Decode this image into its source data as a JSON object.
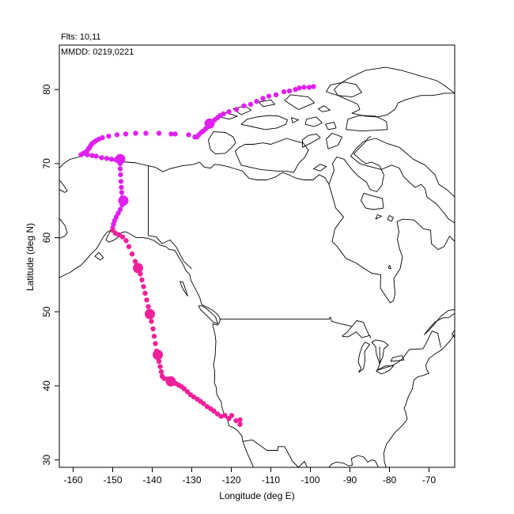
{
  "header": {
    "flights": "Flts: 10,11",
    "mmdd": "MMDD: 0219,0221"
  },
  "chart_data": {
    "type": "scatter",
    "map": "North America coastline and political boundaries (trajectory map)",
    "xlabel": "Longitude (deg E)",
    "ylabel": "Latitude (deg N)",
    "xlim": [
      -163.5,
      -63.5
    ],
    "ylim": [
      29,
      86
    ],
    "xticks": [
      -160,
      -150,
      -140,
      -130,
      -120,
      -110,
      -100,
      -90,
      -80,
      -70
    ],
    "yticks": [
      30,
      40,
      50,
      60,
      70,
      80
    ],
    "colors": {
      "series_magenta": "#e020f0",
      "series_pink": "#f0209a",
      "coast": "#000000"
    },
    "series": [
      {
        "color": "#e020f0",
        "points": [
          [
            -99.2,
            80.4
          ],
          [
            -100.3,
            80.3
          ],
          [
            -101.6,
            80.3
          ],
          [
            -102.8,
            80.2
          ],
          [
            -103.8,
            80.0
          ],
          [
            -105.3,
            79.8
          ],
          [
            -106.7,
            79.7
          ],
          [
            -108.7,
            79.3
          ],
          [
            -110.5,
            79.1
          ],
          [
            -112.0,
            78.8
          ],
          [
            -113.6,
            78.4
          ],
          [
            -115.1,
            78.0
          ],
          [
            -116.8,
            77.8
          ],
          [
            -118.7,
            77.3
          ],
          [
            -120.6,
            77.0
          ],
          [
            -122.0,
            76.7
          ],
          [
            -122.8,
            76.5
          ],
          [
            -123.5,
            76.2
          ],
          [
            -124.2,
            75.9
          ],
          [
            -124.8,
            75.6
          ],
          [
            -125.3,
            75.3
          ],
          [
            -125.9,
            75.0
          ],
          [
            -126.5,
            74.7
          ],
          [
            -127.1,
            74.4
          ],
          [
            -127.6,
            74.2
          ],
          [
            -128.2,
            73.9
          ],
          [
            -128.7,
            73.6
          ],
          [
            -129.2,
            73.6
          ],
          [
            -130.8,
            73.9
          ],
          [
            -134.2,
            74.0
          ],
          [
            -135.2,
            74.0
          ],
          [
            -138.3,
            74.1
          ],
          [
            -141.6,
            74.1
          ],
          [
            -144.2,
            74.1
          ],
          [
            -146.7,
            74.0
          ],
          [
            -148.9,
            73.9
          ],
          [
            -151.0,
            73.7
          ],
          [
            -152.6,
            73.5
          ],
          [
            -153.5,
            73.3
          ],
          [
            -154.2,
            73.1
          ],
          [
            -154.7,
            72.9
          ],
          [
            -155.2,
            72.7
          ],
          [
            -155.5,
            72.5
          ],
          [
            -155.8,
            72.2
          ],
          [
            -156.1,
            72.0
          ],
          [
            -156.5,
            71.7
          ],
          [
            -156.9,
            71.5
          ],
          [
            -157.4,
            71.4
          ],
          [
            -158.0,
            71.2
          ],
          [
            -156.4,
            71.2
          ],
          [
            -155.2,
            71.1
          ],
          [
            -154.2,
            71.0
          ],
          [
            -152.8,
            70.8
          ],
          [
            -151.5,
            70.7
          ],
          [
            -150.3,
            70.6
          ],
          [
            -149.2,
            70.5
          ],
          [
            -148.2,
            70.4
          ],
          [
            -148.1,
            70.0
          ],
          [
            -148.1,
            69.3
          ],
          [
            -148.0,
            68.5
          ],
          [
            -147.9,
            67.6
          ],
          [
            -147.8,
            66.8
          ],
          [
            -147.7,
            66.1
          ],
          [
            -147.6,
            65.4
          ],
          [
            -147.4,
            64.9
          ],
          [
            -147.6,
            64.4
          ],
          [
            -148.1,
            63.8
          ],
          [
            -148.6,
            63.3
          ],
          [
            -149.1,
            62.8
          ],
          [
            -149.5,
            62.3
          ],
          [
            -149.8,
            61.8
          ],
          [
            -150.0,
            61.3
          ]
        ],
        "large": [
          [
            -125.5,
            75.4
          ],
          [
            -148.1,
            70.6
          ],
          [
            -147.3,
            65.0
          ]
        ]
      },
      {
        "color": "#f0209a",
        "points": [
          [
            -150.0,
            61.0
          ],
          [
            -149.3,
            60.6
          ],
          [
            -148.4,
            60.4
          ],
          [
            -147.5,
            60.1
          ],
          [
            -146.6,
            59.6
          ],
          [
            -145.9,
            58.8
          ],
          [
            -145.1,
            57.8
          ],
          [
            -144.3,
            56.8
          ],
          [
            -143.6,
            55.9
          ],
          [
            -143.0,
            55.1
          ],
          [
            -142.6,
            54.3
          ],
          [
            -142.2,
            53.4
          ],
          [
            -141.8,
            52.5
          ],
          [
            -141.4,
            51.6
          ],
          [
            -141.0,
            50.7
          ],
          [
            -140.6,
            49.7
          ],
          [
            -140.2,
            48.7
          ],
          [
            -139.8,
            47.7
          ],
          [
            -139.5,
            46.7
          ],
          [
            -139.2,
            45.7
          ],
          [
            -138.9,
            44.7
          ],
          [
            -138.5,
            44.1
          ],
          [
            -138.3,
            43.3
          ],
          [
            -138.0,
            42.6
          ],
          [
            -137.7,
            41.9
          ],
          [
            -137.5,
            41.3
          ],
          [
            -137.0,
            41.0
          ],
          [
            -136.2,
            40.9
          ],
          [
            -135.4,
            40.7
          ],
          [
            -134.7,
            40.5
          ],
          [
            -134.0,
            40.3
          ],
          [
            -133.3,
            40.1
          ],
          [
            -132.6,
            39.9
          ],
          [
            -131.9,
            39.6
          ],
          [
            -131.1,
            39.2
          ],
          [
            -130.3,
            38.8
          ],
          [
            -129.5,
            38.5
          ],
          [
            -128.6,
            38.2
          ],
          [
            -127.8,
            37.9
          ],
          [
            -127.0,
            37.6
          ],
          [
            -126.1,
            37.2
          ],
          [
            -125.2,
            36.9
          ],
          [
            -124.4,
            36.6
          ],
          [
            -123.5,
            36.2
          ],
          [
            -122.6,
            35.9
          ],
          [
            -121.6,
            36.0
          ],
          [
            -120.6,
            35.6
          ],
          [
            -119.9,
            36.0
          ],
          [
            -118.8,
            35.3
          ],
          [
            -117.8,
            34.8
          ],
          [
            -117.8,
            35.4
          ]
        ],
        "large": [
          [
            -143.6,
            55.9
          ],
          [
            -140.6,
            49.7
          ],
          [
            -138.6,
            44.2
          ],
          [
            -135.3,
            40.6
          ]
        ]
      }
    ]
  }
}
